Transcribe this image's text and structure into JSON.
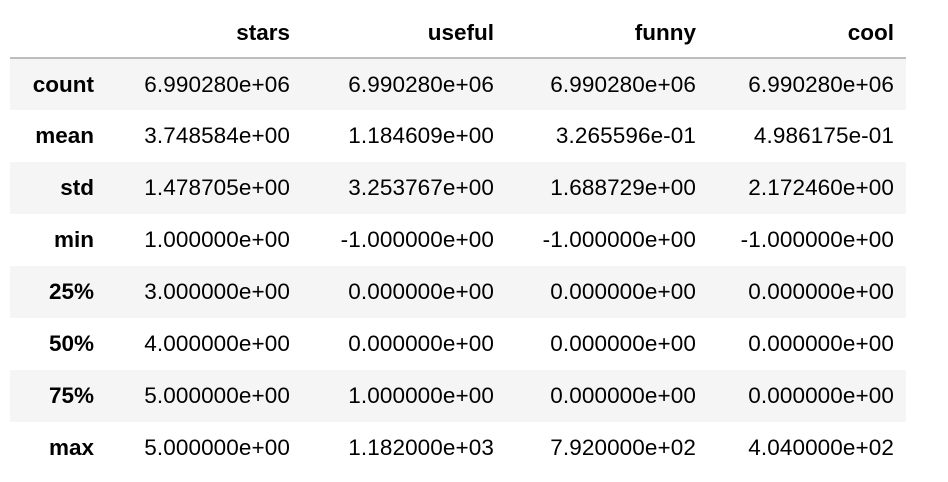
{
  "table": {
    "index_header": "",
    "columns": [
      "stars",
      "useful",
      "funny",
      "cool"
    ],
    "rows": [
      {
        "label": "count",
        "values": [
          "6.990280e+06",
          "6.990280e+06",
          "6.990280e+06",
          "6.990280e+06"
        ]
      },
      {
        "label": "mean",
        "values": [
          "3.748584e+00",
          "1.184609e+00",
          "3.265596e-01",
          "4.986175e-01"
        ]
      },
      {
        "label": "std",
        "values": [
          "1.478705e+00",
          "3.253767e+00",
          "1.688729e+00",
          "2.172460e+00"
        ]
      },
      {
        "label": "min",
        "values": [
          "1.000000e+00",
          "-1.000000e+00",
          "-1.000000e+00",
          "-1.000000e+00"
        ]
      },
      {
        "label": "25%",
        "values": [
          "3.000000e+00",
          "0.000000e+00",
          "0.000000e+00",
          "0.000000e+00"
        ]
      },
      {
        "label": "50%",
        "values": [
          "4.000000e+00",
          "0.000000e+00",
          "0.000000e+00",
          "0.000000e+00"
        ]
      },
      {
        "label": "75%",
        "values": [
          "5.000000e+00",
          "1.000000e+00",
          "0.000000e+00",
          "0.000000e+00"
        ]
      },
      {
        "label": "max",
        "values": [
          "5.000000e+00",
          "1.182000e+03",
          "7.920000e+02",
          "4.040000e+02"
        ]
      }
    ]
  },
  "colors": {
    "row_stripe": "#f5f5f5",
    "row_plain": "#ffffff",
    "header_rule": "#bdbdbd",
    "text": "#000000"
  }
}
